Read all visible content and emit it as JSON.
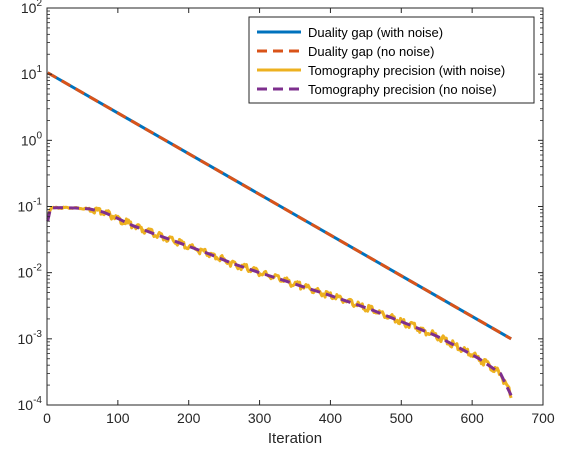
{
  "chart_data": {
    "type": "line",
    "xlabel": "Iteration",
    "ylabel": "",
    "title": "",
    "xlim": [
      0,
      700
    ],
    "ylim": [
      0.0001,
      100
    ],
    "yscale": "log",
    "grid": false,
    "legend_position": "top-right",
    "x_ticks": [
      "0",
      "100",
      "200",
      "300",
      "400",
      "500",
      "600",
      "700"
    ],
    "y_ticks": [
      {
        "base": "10",
        "exp": "2"
      },
      {
        "base": "10",
        "exp": "1"
      },
      {
        "base": "10",
        "exp": "0"
      },
      {
        "base": "10",
        "exp": "-1"
      },
      {
        "base": "10",
        "exp": "-2"
      },
      {
        "base": "10",
        "exp": "-3"
      },
      {
        "base": "10",
        "exp": "-4"
      }
    ],
    "series": [
      {
        "name": "Duality gap (with noise)",
        "color": "#0072BD",
        "style": "solid",
        "x": [
          1,
          655
        ],
        "y": [
          10.5,
          0.001
        ]
      },
      {
        "name": "Duality gap (no noise)",
        "color": "#D95319",
        "style": "dashed",
        "x": [
          1,
          655
        ],
        "y": [
          10.5,
          0.001
        ]
      },
      {
        "name": "Tomography precision (with noise)",
        "color": "#EDB120",
        "style": "solid",
        "noisy": true,
        "x": [
          1,
          5,
          20,
          40,
          60,
          80,
          100,
          120,
          150,
          180,
          200,
          230,
          260,
          300,
          330,
          360,
          400,
          430,
          460,
          490,
          520,
          550,
          580,
          610,
          640,
          655
        ],
        "y": [
          0.065,
          0.095,
          0.096,
          0.095,
          0.092,
          0.082,
          0.066,
          0.052,
          0.039,
          0.03,
          0.025,
          0.019,
          0.014,
          0.01,
          0.0079,
          0.0062,
          0.0045,
          0.0035,
          0.0027,
          0.002,
          0.0015,
          0.0011,
          0.00075,
          0.0005,
          0.0003,
          0.00014
        ]
      },
      {
        "name": "Tomography precision (no noise)",
        "color": "#7E2F8E",
        "style": "dashed",
        "x": [
          1,
          5,
          20,
          40,
          60,
          80,
          100,
          120,
          150,
          180,
          200,
          230,
          260,
          300,
          330,
          360,
          400,
          430,
          460,
          490,
          520,
          550,
          580,
          610,
          640,
          655
        ],
        "y": [
          0.06,
          0.095,
          0.096,
          0.095,
          0.092,
          0.082,
          0.066,
          0.052,
          0.039,
          0.03,
          0.025,
          0.019,
          0.014,
          0.01,
          0.0079,
          0.0062,
          0.0045,
          0.0035,
          0.0027,
          0.002,
          0.0015,
          0.0011,
          0.00075,
          0.0005,
          0.0003,
          0.00014
        ]
      }
    ]
  }
}
